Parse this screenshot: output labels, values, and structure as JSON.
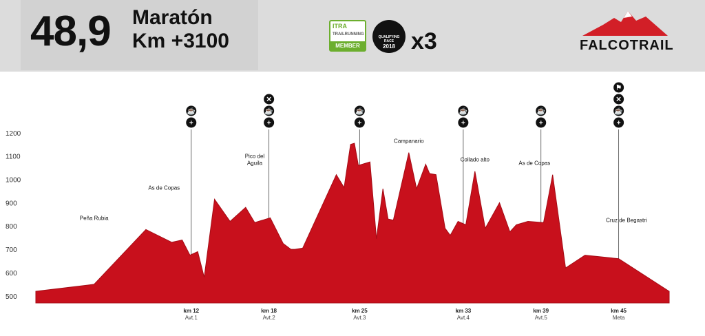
{
  "header": {
    "distance": "48,9",
    "race_name": "Maratón",
    "elevation_gain": "Km +3100",
    "badges": {
      "itra_logo": "ITRA",
      "itra_subtitle": "TRAILRUNNING",
      "itra_label": "MEMBER",
      "utmb_line1": "QUALIFYING",
      "utmb_line2": "RACE",
      "utmb_year": "2018"
    },
    "multiplier": "x3",
    "brand": "FALCOTRAIL"
  },
  "colors": {
    "profile_fill": "#c8101c",
    "profile_stroke": "#a50c16",
    "header_bg": "#dcdcdc",
    "title_box_bg": "#d2d2d2",
    "itra_green": "#6cae2e",
    "brand_red": "#d21f27",
    "icon_bg": "#111111"
  },
  "chart_data": {
    "type": "area",
    "xlabel": "",
    "ylabel": "",
    "xlim": [
      0,
      48.9
    ],
    "ylim": [
      470,
      1220
    ],
    "yticks": [
      500,
      600,
      700,
      800,
      900,
      1000,
      1100,
      1200
    ],
    "grid": false,
    "series": [
      {
        "x": [
          0,
          4.5,
          8.5,
          10.5,
          11.3,
          11.9,
          12.5,
          13.0,
          13.8,
          15.0,
          16.2,
          16.9,
          18.1,
          19.1,
          19.7,
          20.0,
          20.6,
          23.2,
          23.8,
          24.3,
          24.6,
          24.9,
          25.8,
          26.3,
          26.8,
          27.2,
          27.6,
          28.8,
          29.4,
          30.1,
          30.4,
          30.9,
          31.6,
          32.0,
          32.6,
          33.2,
          33.9,
          34.7,
          35.8,
          36.6,
          37.1,
          38.0,
          39.2,
          39.9,
          40.9,
          42.4,
          45.0,
          48.9
        ],
        "y": [
          520,
          550,
          785,
          730,
          740,
          675,
          690,
          580,
          915,
          820,
          880,
          815,
          835,
          725,
          700,
          700,
          705,
          1020,
          965,
          1150,
          1155,
          1060,
          1075,
          745,
          960,
          830,
          825,
          1115,
          960,
          1065,
          1025,
          1020,
          790,
          760,
          820,
          805,
          1035,
          790,
          900,
          775,
          805,
          820,
          815,
          1020,
          620,
          675,
          660,
          520
        ]
      }
    ],
    "peaks": [
      {
        "name": "Peña Rubia",
        "x": 4.5,
        "y": 785
      },
      {
        "name": "As de Copas",
        "x": 9.9,
        "y": 915
      },
      {
        "name": "Pico del Aguila",
        "x": 16.9,
        "y": 1020
      },
      {
        "name": "Campanario",
        "x": 28.8,
        "y": 1115
      },
      {
        "name": "Collado alto",
        "x": 33.9,
        "y": 1035
      },
      {
        "name": "As de Copas",
        "x": 38.5,
        "y": 1020
      },
      {
        "name": "Cruz de Begastri",
        "x": 45.6,
        "y": 775
      }
    ],
    "aid_stations": [
      {
        "km_label": "km 12",
        "name": "Avt.1",
        "x": 12,
        "icons": [
          "food-icon",
          "first-aid-icon"
        ]
      },
      {
        "km_label": "km 18",
        "name": "Avt.2",
        "x": 18,
        "icons": [
          "cutoff-icon",
          "food-icon",
          "first-aid-icon"
        ]
      },
      {
        "km_label": "km 25",
        "name": "Avt.3",
        "x": 25,
        "icons": [
          "food-icon",
          "first-aid-icon"
        ]
      },
      {
        "km_label": "km 33",
        "name": "Avt.4",
        "x": 33,
        "icons": [
          "food-icon",
          "first-aid-icon"
        ]
      },
      {
        "km_label": "km 39",
        "name": "Avt.5",
        "x": 39,
        "icons": [
          "food-icon",
          "first-aid-icon"
        ]
      },
      {
        "km_label": "km 45",
        "name": "Meta",
        "x": 45,
        "icons": [
          "finish-icon",
          "cutoff-icon",
          "food-icon",
          "first-aid-icon"
        ]
      }
    ]
  }
}
